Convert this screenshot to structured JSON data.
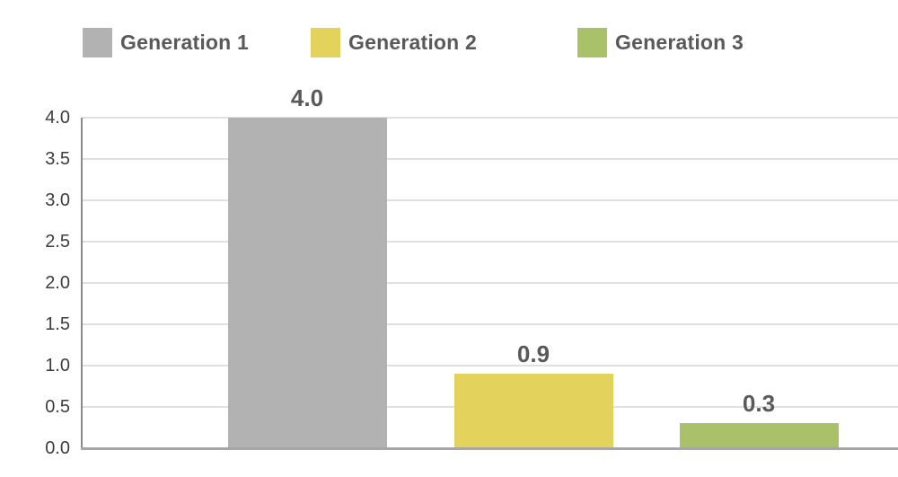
{
  "chart_data": {
    "type": "bar",
    "categories": [
      "Generation 1",
      "Generation 2",
      "Generation 3"
    ],
    "values": [
      4.0,
      0.9,
      0.3
    ],
    "value_labels": [
      "4.0",
      "0.9",
      "0.3"
    ],
    "series_colors": [
      "#b2b2b2",
      "#e3d35c",
      "#a9c169"
    ],
    "title": "",
    "xlabel": "",
    "ylabel": "",
    "ylim": [
      0,
      4
    ],
    "yticks": [
      0.0,
      0.5,
      1.0,
      1.5,
      2.0,
      2.5,
      3.0,
      3.5,
      4.0
    ],
    "ytick_labels": [
      "0.0",
      "0.5",
      "1.0",
      "1.5",
      "2.0",
      "2.5",
      "3.0",
      "3.5",
      "4.0"
    ],
    "grid": true,
    "legend": {
      "position": "top",
      "items": [
        {
          "label": "Generation 1",
          "color": "#b2b2b2"
        },
        {
          "label": "Generation 2",
          "color": "#e3d35c"
        },
        {
          "label": "Generation 3",
          "color": "#a9c169"
        }
      ]
    }
  },
  "colors": {
    "grid_line": "#e0e0e0",
    "axis_line": "#8a8a8a",
    "baseline": "#a6a6a6",
    "tick_text": "#3d3d3d",
    "label_text": "#58595b"
  }
}
